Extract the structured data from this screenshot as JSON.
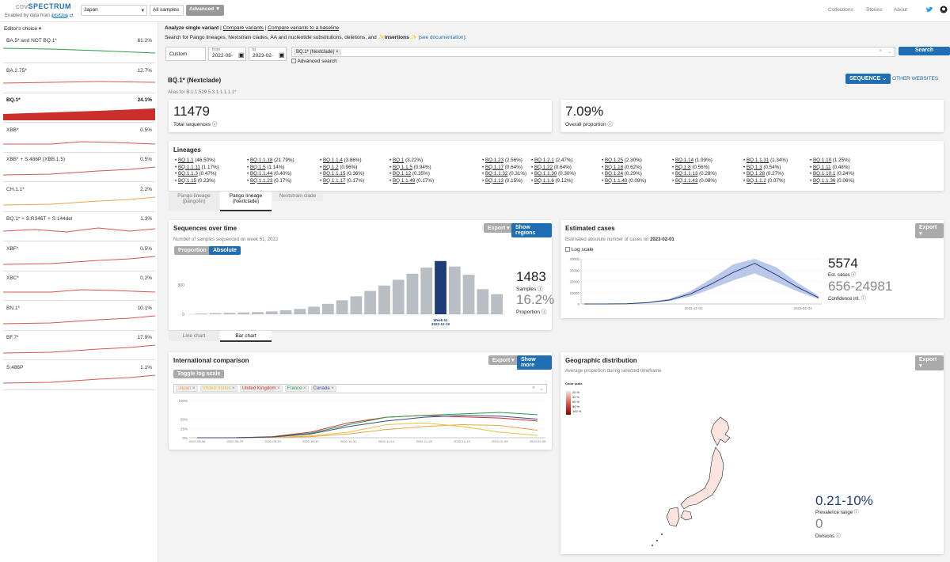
{
  "header": {
    "logo_prefix": "cov",
    "logo_main": "SPECTRUM",
    "enabled_by": "Enabled by data from",
    "gisaid": "GISAID",
    "location": "Japan",
    "samples_btn": "All samples",
    "advanced_btn": "Advanced",
    "nav": [
      "Collections",
      "Stories",
      "About"
    ]
  },
  "sidebar": {
    "title": "Editor's choice ▾",
    "items": [
      {
        "name": "BA.5* and NOT BQ.1*",
        "pct": "61.2%",
        "color": "#2a9d4b",
        "trend": "dec"
      },
      {
        "name": "BA.2.75*",
        "pct": "12.7%",
        "color": "#d9534f",
        "trend": "flat"
      },
      {
        "name": "BQ.1*",
        "pct": "24.1%",
        "color": "#c9302c",
        "trend": "fill",
        "selected": true
      },
      {
        "name": "XBB*",
        "pct": "0.5%",
        "color": "#d9534f",
        "trend": "bump"
      },
      {
        "name": "XBB* + S:486P (XBB.1.5)",
        "pct": "0.5%",
        "color": "#d9534f",
        "trend": "up"
      },
      {
        "name": "CH.1.1*",
        "pct": "2.2%",
        "color": "#e8a34a",
        "trend": "up"
      },
      {
        "name": "BQ.1* + S:R346T + S:144del",
        "pct": "1.3%",
        "color": "#d9534f",
        "trend": "wave"
      },
      {
        "name": "XBF*",
        "pct": "0.5%",
        "color": "#d9534f",
        "trend": "up"
      },
      {
        "name": "XBC*",
        "pct": "0.2%",
        "color": "#d9534f",
        "trend": "bump"
      },
      {
        "name": "BN.1*",
        "pct": "10.1%",
        "color": "#d9534f",
        "trend": "up"
      },
      {
        "name": "BF.7*",
        "pct": "17.9%",
        "color": "#d9534f",
        "trend": "up"
      },
      {
        "name": "S:486P",
        "pct": "1.1%",
        "color": "#d9534f",
        "trend": "up"
      }
    ]
  },
  "query": {
    "mode_active": "Analyze single variant",
    "mode_sep1": "|",
    "mode_link1": "Compare variants",
    "mode_sep2": "|",
    "mode_link2": "Compare variants to a baseline",
    "description": "Search for Pango lineages, Nextstrain clades, AA and nucleotide substitutions, deletions, and",
    "insertions_word": "insertions",
    "doc_link": "(see documentation)",
    "doc_tail": ":",
    "date_mode": "Custom",
    "from_label": "from",
    "from_value": "2022-08-",
    "to_label": "to",
    "to_value": "2023-02-",
    "chip": "BQ.1* (Nextclade)",
    "advanced_search": "Advanced search",
    "search_btn": "Search"
  },
  "variant": {
    "title": "BQ.1* (Nextclade)",
    "alias": "Alias for B.1.1.529.5.3.1.1.1.1.1*",
    "sequence_btn": "SEQUENCE",
    "other_websites": "OTHER WEBSITES"
  },
  "stats": {
    "total": "11479",
    "total_label": "Total sequences",
    "proportion": "7.09%",
    "proportion_label": "Overall proportion"
  },
  "lineages": {
    "title": "Lineages",
    "columns": [
      [
        "BQ.1.1 (46.50%)",
        "BQ.1.1.11 (1.17%)",
        "BQ.1.1.3 (0.47%)",
        "BQ.1.15 (0.23%)"
      ],
      [
        "BQ.1.1.18 (21.79%)",
        "BQ.1.5 (1.14%)",
        "BQ.1.1.44 (0.40%)",
        "BQ.1.1.23 (0.17%)"
      ],
      [
        "BQ.1.1.4 (3.86%)",
        "BQ.1.2 (0.96%)",
        "BQ.1.1.15 (0.36%)",
        "BQ.1.1.17 (0.17%)"
      ],
      [
        "BQ.1 (3.22%)",
        "BQ.1.1.5 (0.94%)",
        "BQ.1.12 (0.35%)",
        "BQ.1.1.49 (0.17%)"
      ],
      [
        "BQ.1.23 (2.56%)",
        "BQ.1.17 (0.64%)",
        "BQ.1.1.32 (0.31%)",
        "BQ.1.13 (0.15%)"
      ],
      [
        "BQ.1.2.1 (2.47%)",
        "BQ.1.22 (0.64%)",
        "BQ.1.1.30 (0.30%)",
        "BQ.1.1.6 (0.12%)"
      ],
      [
        "BQ.1.25 (2.30%)",
        "BQ.1.18 (0.62%)",
        "BQ.1.24 (0.29%)",
        "BQ.1.1.40 (0.09%)"
      ],
      [
        "BQ.1.14 (1.93%)",
        "BQ.1.8 (0.56%)",
        "BQ.1.1.13 (0.28%)",
        "BQ.1.1.43 (0.08%)"
      ],
      [
        "BQ.1.1.31 (1.34%)",
        "BQ.1.3 (0.54%)",
        "BQ.1.28 (0.27%)",
        "BQ.1.1.2 (0.07%)"
      ],
      [
        "BQ.1.10 (1.25%)",
        "BQ.1.11 (0.48%)",
        "BQ.1.10.1 (0.24%)",
        "BQ.1.1.36 (0.06%)"
      ]
    ],
    "tabs": [
      {
        "l1": "Pango lineage",
        "l2": "(pangolin)"
      },
      {
        "l1": "Pango lineage",
        "l2": "(Nextclade)"
      },
      {
        "l1": "Nextstrain clade",
        "l2": ""
      }
    ]
  },
  "seq_over_time": {
    "title": "Sequences over time",
    "export": "Export ▾",
    "regions_btn": "Show regions",
    "subtitle": "Number of samples sequenced on week 51, 2022",
    "toggle_prop": "Proportion",
    "toggle_abs": "Absolute",
    "big": "1483",
    "big_label": "Samples",
    "prop": "16.2%",
    "prop_label": "Proportion",
    "tab_line": "Line chart",
    "tab_bar": "Bar chart",
    "week_label": "Week 51",
    "date_label": "2022-12-19"
  },
  "estimated": {
    "title": "Estimated cases",
    "export": "Export ▾",
    "subtitle_pre": "Estimated absolute number of cases on",
    "subtitle_date": "2023-02-01",
    "log_scale": "Log scale",
    "big": "5574",
    "big_label": "Est. cases",
    "ci": "656-24981",
    "ci_label": "Confidence int."
  },
  "international": {
    "title": "International comparison",
    "export": "Export ▾",
    "more_btn": "Show more",
    "log_btn": "Toggle log scale",
    "countries": [
      {
        "name": "Japan",
        "color": "#e8a34a"
      },
      {
        "name": "United States",
        "color": "#e8c23a"
      },
      {
        "name": "United Kingdom",
        "color": "#c9302c"
      },
      {
        "name": "France",
        "color": "#2a9d4b"
      },
      {
        "name": "Canada",
        "color": "#3a4a8a"
      }
    ]
  },
  "geo": {
    "title": "Geographic distribution",
    "export": "Export ▾",
    "subtitle": "Average proportion during selected timeframe",
    "scale_title": "Color scale",
    "scale_labels": [
      "20 %",
      "40 %",
      "60 %",
      "80 %",
      "100 %"
    ],
    "range": "0.21-10%",
    "range_label": "Prevalence range",
    "divisions": "0",
    "divisions_label": "Divisions"
  },
  "chart_data": [
    {
      "type": "bar",
      "title": "Sequences over time",
      "ylabel": "Samples",
      "ylim": [
        0,
        1500
      ],
      "yticks": [
        "0",
        "800"
      ],
      "highlight_index": 17,
      "values": [
        20,
        30,
        40,
        50,
        60,
        80,
        110,
        150,
        210,
        290,
        390,
        500,
        650,
        800,
        960,
        1130,
        1300,
        1483,
        1330,
        1100,
        700,
        560
      ],
      "bar_color": "#b9bec4",
      "highlight_color": "#1d3c78"
    },
    {
      "type": "area",
      "title": "Estimated cases",
      "ylim": [
        0,
        40000
      ],
      "yticks": [
        "0",
        "10000",
        "20000",
        "30000",
        "40000"
      ],
      "xticks": [
        "2022-11-02",
        "2023-01-03"
      ],
      "x": [
        "2022-08-01",
        "2022-09-01",
        "2022-10-01",
        "2022-11-01",
        "2022-11-15",
        "2022-12-01",
        "2022-12-15",
        "2023-01-01",
        "2023-01-08",
        "2023-01-15",
        "2023-01-22",
        "2023-02-01"
      ],
      "y": [
        0,
        0,
        200,
        1200,
        3500,
        9000,
        18000,
        28000,
        36000,
        26000,
        15000,
        5574
      ]
    },
    {
      "type": "line",
      "title": "International comparison",
      "ylim": [
        0,
        1
      ],
      "yticks": [
        "0%",
        "25%",
        "50%",
        "100%"
      ],
      "xticks": [
        "2022-08-08",
        "2022-08-29",
        "2022-09-19",
        "2022-10-10",
        "2022-10-31",
        "2022-11-14",
        "2022-11-28",
        "2022-12-19",
        "2023-01-09",
        "2023-01-30"
      ],
      "series": [
        {
          "name": "Japan",
          "values": [
            0,
            0,
            0.01,
            0.03,
            0.1,
            0.22,
            0.3,
            0.35,
            0.33,
            0.2
          ]
        },
        {
          "name": "United States",
          "values": [
            0,
            0,
            0.01,
            0.05,
            0.15,
            0.35,
            0.4,
            0.3,
            0.15,
            0.06
          ]
        },
        {
          "name": "United Kingdom",
          "values": [
            0,
            0,
            0.03,
            0.15,
            0.4,
            0.55,
            0.6,
            0.56,
            0.53,
            0.45
          ]
        },
        {
          "name": "France",
          "values": [
            0,
            0,
            0.02,
            0.12,
            0.35,
            0.55,
            0.6,
            0.64,
            0.68,
            0.62
          ]
        },
        {
          "name": "Canada",
          "values": [
            0,
            0,
            0.02,
            0.1,
            0.3,
            0.45,
            0.55,
            0.6,
            0.58,
            0.5
          ]
        }
      ]
    }
  ]
}
